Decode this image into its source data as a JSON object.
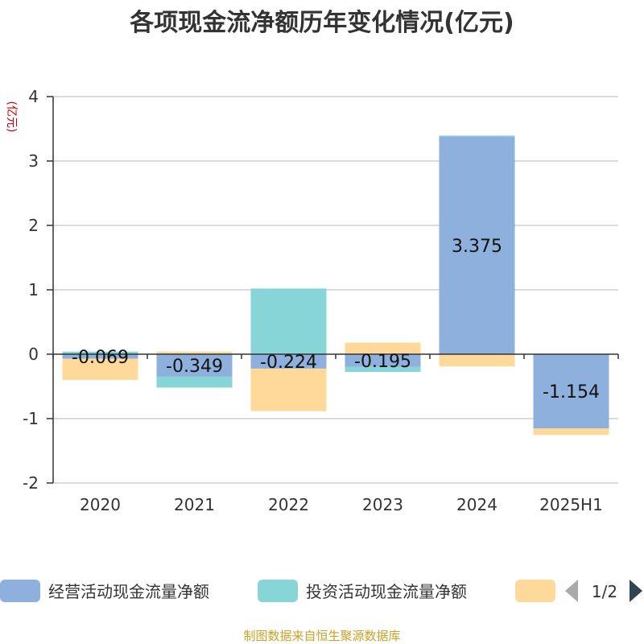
{
  "chart_data": {
    "type": "bar",
    "stacked": true,
    "title": "各项现金流净额历年变化情况(亿元)",
    "ylabel": "(亿元)",
    "ylim": [
      -2,
      4
    ],
    "yticks": [
      4,
      3,
      2,
      1,
      0,
      -1,
      -2
    ],
    "categories": [
      "2020",
      "2021",
      "2022",
      "2023",
      "2024",
      "2025H1"
    ],
    "series": [
      {
        "name": "经营活动现金流量净额",
        "color": "#8eb0dc",
        "values": [
          -0.069,
          -0.349,
          -0.224,
          -0.195,
          3.375,
          -1.154
        ],
        "labels": [
          "-0.069",
          "-0.349",
          "-0.224",
          "-0.195",
          "3.375",
          "-1.154"
        ]
      },
      {
        "name": "投资活动现金流量净额",
        "color": "#88d5d8",
        "values": [
          0.04,
          -0.17,
          1.02,
          -0.08,
          0.02,
          0.0
        ]
      },
      {
        "name": "",
        "color": "#ffd99a",
        "values": [
          -0.33,
          0.04,
          -0.66,
          0.18,
          -0.19,
          -0.1
        ]
      }
    ],
    "grid": true,
    "legend_position": "bottom",
    "legend_pager": "1/2",
    "source": "制图数据来自恒生聚源数据库"
  }
}
